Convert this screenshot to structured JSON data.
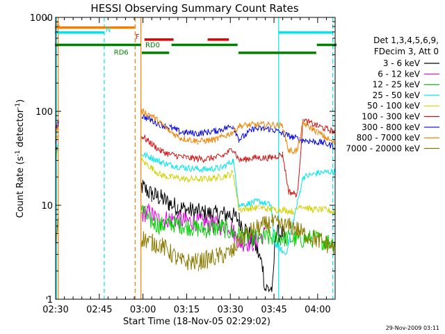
{
  "chart_data": {
    "type": "line",
    "title": "HESSI Observing Summary Count Rates",
    "xlabel": "Start Time (18-Nov-05 02:29:02)",
    "ylabel_main": "Count Rate (s",
    "ylabel_sup1": "-1",
    "ylabel_mid": " detector",
    "ylabel_sup2": "-1",
    "ylabel_end": ")",
    "yscale": "log",
    "ylim": [
      1,
      1000
    ],
    "xlim_min": [
      150,
      246
    ],
    "yticks": [
      {
        "value": 1,
        "label": "1"
      },
      {
        "value": 10,
        "label": "10"
      },
      {
        "value": 100,
        "label": "100"
      },
      {
        "value": 1000,
        "label": "1000"
      }
    ],
    "xticks": [
      {
        "value": 150,
        "label": "02:30"
      },
      {
        "value": 165,
        "label": "02:45"
      },
      {
        "value": 180,
        "label": "03:00"
      },
      {
        "value": 195,
        "label": "03:15"
      },
      {
        "value": 210,
        "label": "03:30"
      },
      {
        "value": 225,
        "label": "03:45"
      },
      {
        "value": 240,
        "label": "04:00"
      }
    ],
    "legend_header": [
      "Det 1,3,4,5,6,9,",
      "FDecim 3, Att 0"
    ],
    "series": [
      {
        "name": "3 - 6 keV",
        "color": "#000000",
        "points": [
          [
            149.5,
            28
          ],
          [
            150.5,
            35
          ],
          [
            179.5,
            16
          ],
          [
            183,
            13
          ],
          [
            186,
            12
          ],
          [
            189,
            10.5
          ],
          [
            192,
            9.5
          ],
          [
            198,
            8.5
          ],
          [
            204,
            8
          ],
          [
            210,
            8
          ],
          [
            213,
            7
          ],
          [
            218,
            4.2
          ],
          [
            221,
            2.3
          ],
          [
            222,
            1.3
          ],
          [
            224.5,
            1.3
          ],
          [
            225.5,
            5
          ],
          [
            228,
            5
          ],
          [
            229,
            4
          ]
        ]
      },
      {
        "name": "6 - 12 keV",
        "color": "#e000e0",
        "points": [
          [
            149.5,
            42
          ],
          [
            150.5,
            50
          ],
          [
            179.5,
            8
          ],
          [
            182,
            8.5
          ],
          [
            185,
            7
          ],
          [
            189,
            7.2
          ],
          [
            195,
            6.8
          ],
          [
            201,
            6.5
          ],
          [
            207,
            6
          ],
          [
            210,
            6
          ],
          [
            213,
            4
          ],
          [
            218,
            4
          ],
          [
            222,
            5
          ]
        ]
      },
      {
        "name": "12 - 25 keV",
        "color": "#00d000",
        "points": [
          [
            149.5,
            30
          ],
          [
            150.5,
            40
          ],
          [
            179.5,
            9
          ],
          [
            182,
            7
          ],
          [
            186,
            6
          ],
          [
            189,
            6.5
          ],
          [
            195,
            6
          ],
          [
            201,
            5.5
          ],
          [
            207,
            5.8
          ],
          [
            211,
            5
          ],
          [
            215,
            4.5
          ],
          [
            222,
            4.5
          ],
          [
            228,
            4.5
          ],
          [
            233,
            4.3
          ],
          [
            238,
            4.4
          ],
          [
            242,
            4.2
          ],
          [
            246,
            4
          ]
        ]
      },
      {
        "name": "25 - 50 keV",
        "color": "#00e5ee",
        "points": [
          [
            149.5,
            35
          ],
          [
            151,
            45
          ],
          [
            179.5,
            35
          ],
          [
            183,
            32
          ],
          [
            186,
            29
          ],
          [
            189,
            27
          ],
          [
            195,
            25
          ],
          [
            201,
            24
          ],
          [
            207,
            25
          ],
          [
            211,
            30
          ],
          [
            213,
            10
          ],
          [
            220,
            11
          ],
          [
            224,
            10
          ],
          [
            225,
            4
          ],
          [
            229,
            3
          ],
          [
            230,
            4
          ],
          [
            235,
            20
          ],
          [
            240,
            22
          ],
          [
            246,
            23
          ]
        ]
      },
      {
        "name": "50 - 100 keV",
        "color": "#d0d000",
        "points": [
          [
            149.5,
            45
          ],
          [
            151,
            55
          ],
          [
            179.5,
            30
          ],
          [
            183,
            25
          ],
          [
            186,
            21
          ],
          [
            189,
            20
          ],
          [
            195,
            19
          ],
          [
            201,
            19
          ],
          [
            207,
            20
          ],
          [
            211,
            22
          ],
          [
            213,
            9
          ],
          [
            220,
            9.5
          ],
          [
            224,
            9
          ],
          [
            228,
            9
          ],
          [
            232,
            8.5
          ],
          [
            234,
            10
          ],
          [
            238,
            9
          ],
          [
            242,
            9
          ],
          [
            246,
            8.5
          ]
        ]
      },
      {
        "name": "100 - 300 keV",
        "color": "#d01010",
        "points": [
          [
            149.5,
            65
          ],
          [
            151,
            80
          ],
          [
            179.5,
            55
          ],
          [
            183,
            45
          ],
          [
            186,
            38
          ],
          [
            189,
            35
          ],
          [
            195,
            32
          ],
          [
            201,
            31
          ],
          [
            207,
            33
          ],
          [
            211,
            40
          ],
          [
            213,
            30
          ],
          [
            218,
            32
          ],
          [
            224,
            32
          ],
          [
            228,
            35
          ],
          [
            230,
            14
          ],
          [
            233,
            13
          ],
          [
            235,
            80
          ],
          [
            240,
            70
          ],
          [
            246,
            60
          ]
        ]
      },
      {
        "name": "300 - 800 keV",
        "color": "#0000e0",
        "points": [
          [
            149.5,
            60
          ],
          [
            151,
            75
          ],
          [
            179.5,
            90
          ],
          [
            183,
            80
          ],
          [
            186,
            72
          ],
          [
            189,
            68
          ],
          [
            193,
            60
          ],
          [
            199,
            58
          ],
          [
            205,
            62
          ],
          [
            211,
            70
          ],
          [
            213,
            50
          ],
          [
            218,
            65
          ],
          [
            224,
            65
          ],
          [
            228,
            58
          ],
          [
            230,
            55
          ],
          [
            234,
            50
          ],
          [
            238,
            48
          ],
          [
            242,
            46
          ],
          [
            246,
            42
          ]
        ]
      },
      {
        "name": "800 - 7000 keV",
        "color": "#f08000",
        "points": [
          [
            149.5,
            55
          ],
          [
            151,
            70
          ],
          [
            179.5,
            100
          ],
          [
            183,
            90
          ],
          [
            186,
            75
          ],
          [
            189,
            62
          ],
          [
            193,
            52
          ],
          [
            199,
            48
          ],
          [
            205,
            50
          ],
          [
            211,
            60
          ],
          [
            213,
            70
          ],
          [
            218,
            72
          ],
          [
            224,
            72
          ],
          [
            228,
            70
          ],
          [
            230,
            38
          ],
          [
            233,
            38
          ],
          [
            235,
            75
          ],
          [
            240,
            60
          ],
          [
            246,
            45
          ]
        ]
      },
      {
        "name": "7000 - 20000 keV",
        "color": "#8b7a00",
        "points": [
          [
            149.5,
            3
          ],
          [
            151,
            8
          ],
          [
            179.5,
            4.5
          ],
          [
            183,
            4
          ],
          [
            186,
            3.8
          ],
          [
            189,
            3.2
          ],
          [
            193,
            2.5
          ],
          [
            199,
            2.5
          ],
          [
            205,
            2.8
          ],
          [
            211,
            3.2
          ],
          [
            213,
            4.3
          ],
          [
            218,
            5.5
          ],
          [
            224,
            6.5
          ],
          [
            228,
            6
          ],
          [
            232,
            5.8
          ],
          [
            235,
            5
          ],
          [
            240,
            4.3
          ],
          [
            246,
            3.5
          ]
        ]
      }
    ],
    "vlines": [
      {
        "x": 150.3,
        "color": "#00e5ee",
        "style": "solid"
      },
      {
        "x": 150.9,
        "color": "#f08000",
        "style": "solid"
      },
      {
        "x": 166.7,
        "color": "#00e5ee",
        "style": "dashed"
      },
      {
        "x": 177.3,
        "color": "#f08000",
        "style": "dashed"
      },
      {
        "x": 179.3,
        "color": "#f08000",
        "style": "solid"
      },
      {
        "x": 226.6,
        "color": "#00e5ee",
        "style": "solid"
      },
      {
        "x": 245.2,
        "color": "#00e5ee",
        "style": "dashed"
      }
    ],
    "flag_bars": [
      {
        "color": "#f08000",
        "y": 780,
        "segments": [
          [
            149.8,
            177.2
          ]
        ]
      },
      {
        "color": "#00e5ee",
        "y": 690,
        "segments": [
          [
            149.8,
            166.6
          ],
          [
            226.6,
            245.2
          ]
        ]
      },
      {
        "color": "#e00000",
        "y": 580,
        "segments": [
          [
            180.5,
            190.5
          ],
          [
            202.2,
            209.5
          ]
        ]
      },
      {
        "color": "#008000",
        "y": 510,
        "segments": [
          [
            149.8,
            179.3
          ],
          [
            189.8,
            212.5
          ],
          [
            239.7,
            246.5
          ]
        ]
      },
      {
        "color": "#008000",
        "y": 420,
        "segments": [
          [
            179.6,
            189.0
          ],
          [
            212.8,
            239.5
          ]
        ]
      }
    ],
    "flag_labels": [
      {
        "text": "S",
        "color": "#f08000",
        "x": 150.0,
        "y": 790
      },
      {
        "text": "N",
        "color": "#00e5ee",
        "x": 167.2,
        "y": 700
      },
      {
        "text": "F",
        "color": "#e00000",
        "x": 177.4,
        "y": 590
      },
      {
        "text": "RD0",
        "color": "#008000",
        "x": 180.8,
        "y": 480
      },
      {
        "text": "RD6",
        "color": "#008000",
        "x": 170.0,
        "y": 400
      }
    ],
    "timestamp": "29-Nov-2009 03:11"
  }
}
